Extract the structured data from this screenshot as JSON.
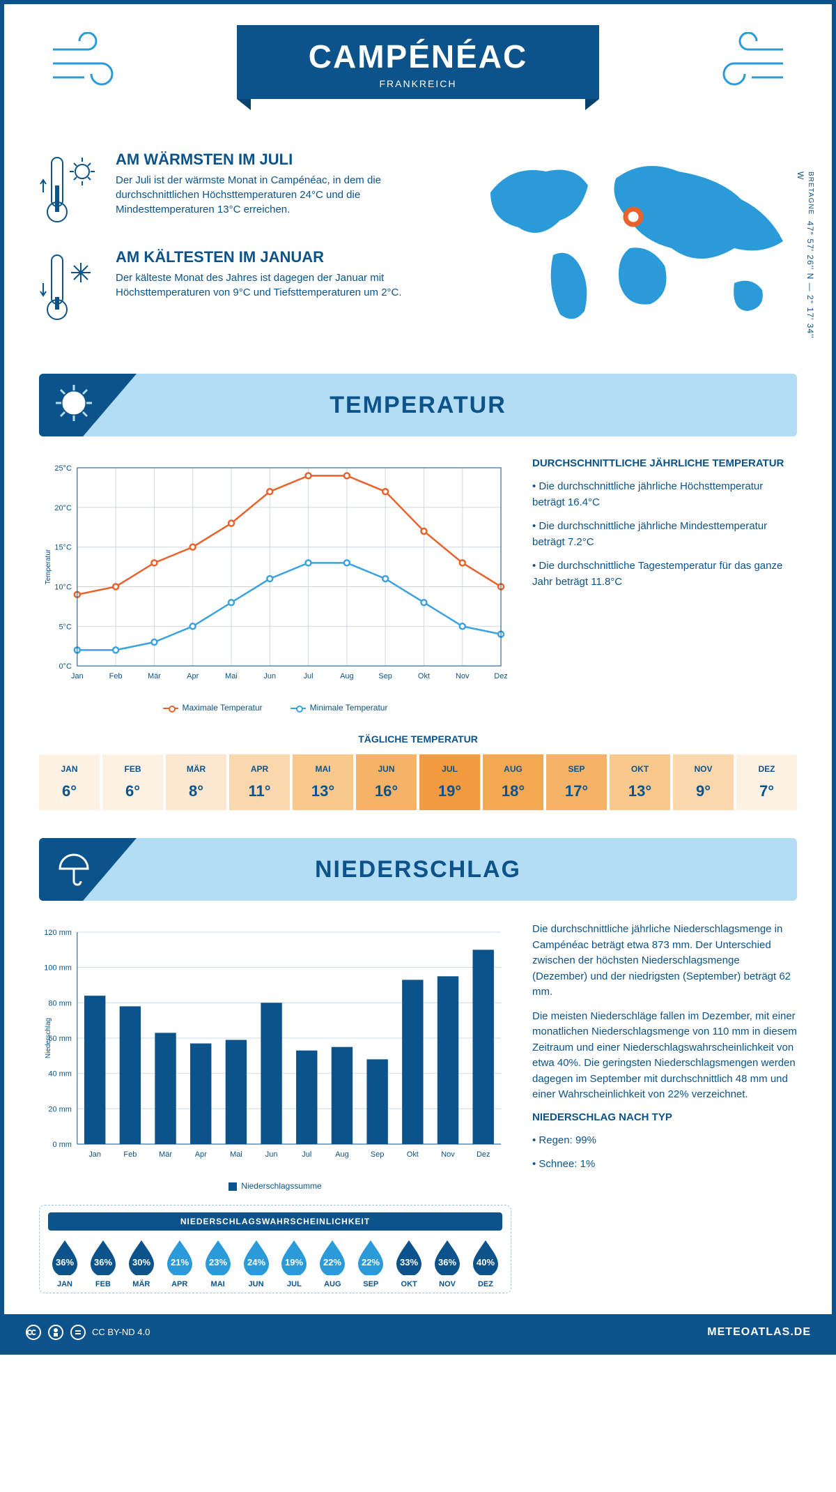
{
  "header": {
    "city": "CAMPÉNÉAC",
    "country": "FRANKREICH",
    "region": "BRETAGNE",
    "coords": "47° 57' 26'' N — 2° 17' 34'' W"
  },
  "facts": {
    "warm": {
      "title": "AM WÄRMSTEN IM JULI",
      "text": "Der Juli ist der wärmste Monat in Campénéac, in dem die durchschnittlichen Höchsttemperaturen 24°C und die Mindesttemperaturen 13°C erreichen."
    },
    "cold": {
      "title": "AM KÄLTESTEN IM JANUAR",
      "text": "Der kälteste Monat des Jahres ist dagegen der Januar mit Höchsttemperaturen von 9°C und Tiefsttemperaturen um 2°C."
    }
  },
  "colors": {
    "brand": "#0b538a",
    "lightblue": "#b3dcf5",
    "accent": "#2a9bd8",
    "max_line": "#e8622c",
    "min_line": "#3aa2e0",
    "grid": "#cfd8e0",
    "bar": "#0b538a"
  },
  "temperature": {
    "section_title": "TEMPERATUR",
    "chart": {
      "months": [
        "Jan",
        "Feb",
        "Mär",
        "Apr",
        "Mai",
        "Jun",
        "Jul",
        "Aug",
        "Sep",
        "Okt",
        "Nov",
        "Dez"
      ],
      "max": [
        9,
        10,
        13,
        15,
        18,
        22,
        24,
        24,
        22,
        17,
        13,
        10
      ],
      "min": [
        2,
        2,
        3,
        5,
        8,
        11,
        13,
        13,
        11,
        8,
        5,
        4
      ],
      "y_min": 0,
      "y_max": 25,
      "y_step": 5,
      "y_label": "Temperatur",
      "legend_max": "Maximale Temperatur",
      "legend_min": "Minimale Temperatur"
    },
    "side": {
      "title": "DURCHSCHNITTLICHE JÄHRLICHE TEMPERATUR",
      "b1": "• Die durchschnittliche jährliche Höchsttemperatur beträgt 16.4°C",
      "b2": "• Die durchschnittliche jährliche Mindesttemperatur beträgt 7.2°C",
      "b3": "• Die durchschnittliche Tagestemperatur für das ganze Jahr beträgt 11.8°C"
    },
    "daily": {
      "title": "TÄGLICHE TEMPERATUR",
      "months": [
        "JAN",
        "FEB",
        "MÄR",
        "APR",
        "MAI",
        "JUN",
        "JUL",
        "AUG",
        "SEP",
        "OKT",
        "NOV",
        "DEZ"
      ],
      "values": [
        "6°",
        "6°",
        "8°",
        "11°",
        "13°",
        "16°",
        "19°",
        "18°",
        "17°",
        "13°",
        "9°",
        "7°"
      ],
      "colors": [
        "#fdf1e4",
        "#fdf1e4",
        "#fde7d0",
        "#fbd7ae",
        "#f9c88d",
        "#f6b368",
        "#f39b3f",
        "#f4a851",
        "#f6b368",
        "#f9c88d",
        "#fbd7ae",
        "#fdf1e4"
      ]
    }
  },
  "precip": {
    "section_title": "NIEDERSCHLAG",
    "chart": {
      "months": [
        "Jan",
        "Feb",
        "Mär",
        "Apr",
        "Mai",
        "Jun",
        "Jul",
        "Aug",
        "Sep",
        "Okt",
        "Nov",
        "Dez"
      ],
      "values": [
        84,
        78,
        63,
        57,
        59,
        80,
        53,
        55,
        48,
        93,
        95,
        110
      ],
      "y_min": 0,
      "y_max": 120,
      "y_step": 20,
      "y_label": "Niederschlag",
      "legend": "Niederschlagssumme"
    },
    "text": {
      "p1": "Die durchschnittliche jährliche Niederschlagsmenge in Campénéac beträgt etwa 873 mm. Der Unterschied zwischen der höchsten Niederschlagsmenge (Dezember) und der niedrigsten (September) beträgt 62 mm.",
      "p2": "Die meisten Niederschläge fallen im Dezember, mit einer monatlichen Niederschlagsmenge von 110 mm in diesem Zeitraum und einer Niederschlagswahrscheinlichkeit von etwa 40%. Die geringsten Niederschlagsmengen werden dagegen im September mit durchschnittlich 48 mm und einer Wahrscheinlichkeit von 22% verzeichnet.",
      "type_title": "NIEDERSCHLAG NACH TYP",
      "type_b1": "• Regen: 99%",
      "type_b2": "• Schnee: 1%"
    },
    "prob": {
      "title": "NIEDERSCHLAGSWAHRSCHEINLICHKEIT",
      "months": [
        "JAN",
        "FEB",
        "MÄR",
        "APR",
        "MAI",
        "JUN",
        "JUL",
        "AUG",
        "SEP",
        "OKT",
        "NOV",
        "DEZ"
      ],
      "values": [
        "36%",
        "36%",
        "30%",
        "21%",
        "23%",
        "24%",
        "19%",
        "22%",
        "22%",
        "33%",
        "36%",
        "40%"
      ],
      "colors": [
        "#0b538a",
        "#0b538a",
        "#0b538a",
        "#2a9bd8",
        "#2a9bd8",
        "#2a9bd8",
        "#2a9bd8",
        "#2a9bd8",
        "#2a9bd8",
        "#0b538a",
        "#0b538a",
        "#0b538a"
      ]
    }
  },
  "footer": {
    "license": "CC BY-ND 4.0",
    "site": "METEOATLAS.DE"
  }
}
